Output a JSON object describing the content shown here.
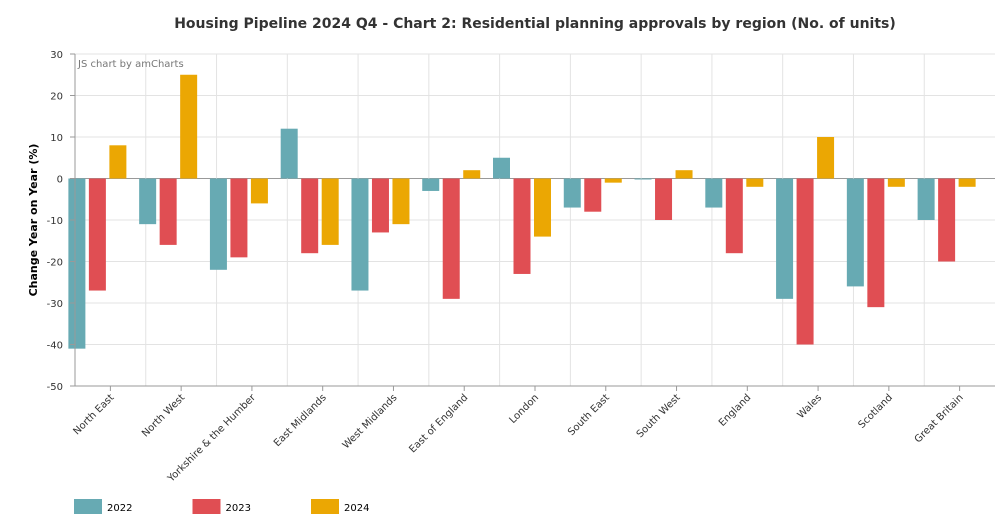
{
  "chart_data": {
    "type": "bar",
    "title": "Housing Pipeline 2024 Q4 - Chart 2: Residential planning approvals by region (No. of units)",
    "credit": "JS chart by amCharts",
    "xlabel": "",
    "ylabel": "Change Year on Year (%)",
    "ylim": [
      -50,
      30
    ],
    "yticks": [
      30,
      20,
      10,
      0,
      -10,
      -20,
      -30,
      -40,
      -50
    ],
    "grid": true,
    "legend_position": "bottom-left",
    "categories": [
      "North East",
      "North West",
      "Yorkshire & the Humber",
      "East Midlands",
      "West Midlands",
      "East of England",
      "London",
      "South East",
      "South West",
      "England",
      "Wales",
      "Scotland",
      "Great Britain"
    ],
    "series": [
      {
        "name": "2022",
        "color": "#67AAB3",
        "values": [
          -41,
          -11,
          -22,
          12,
          -27,
          -3,
          5,
          -7,
          0,
          -7,
          -29,
          -26,
          -10
        ]
      },
      {
        "name": "2023",
        "color": "#E04E53",
        "values": [
          -27,
          -16,
          -19,
          -18,
          -13,
          -29,
          -23,
          -8,
          -10,
          -18,
          -40,
          -31,
          -20
        ]
      },
      {
        "name": "2024",
        "color": "#EBA703",
        "values": [
          8,
          25,
          -6,
          -16,
          -11,
          2,
          -14,
          -1,
          2,
          -2,
          10,
          -2,
          -2
        ]
      }
    ]
  }
}
